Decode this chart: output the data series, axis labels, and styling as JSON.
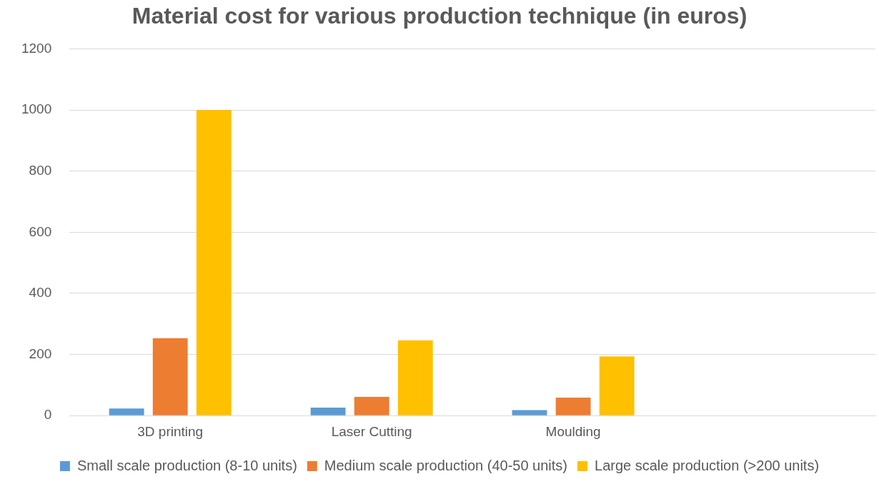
{
  "chart_data": {
    "type": "bar",
    "title": "Material cost for various production technique (in euros)",
    "categories": [
      "3D printing",
      "Laser Cutting",
      "Moulding",
      null
    ],
    "series": [
      {
        "name": "Small scale production (8-10 units)",
        "color": "#5b9bd5",
        "values": [
          23,
          26,
          18,
          null
        ]
      },
      {
        "name": "Medium scale production (40-50 units)",
        "color": "#ed7d31",
        "values": [
          253,
          61,
          59,
          null
        ]
      },
      {
        "name": "Large scale production (>200 units)",
        "color": "#ffc000",
        "values": [
          1000,
          246,
          194,
          null
        ]
      }
    ],
    "ylim": [
      0,
      1200
    ],
    "yticks": [
      0,
      200,
      400,
      600,
      800,
      1000,
      1200
    ],
    "grid": "y",
    "legend": "bottom"
  }
}
